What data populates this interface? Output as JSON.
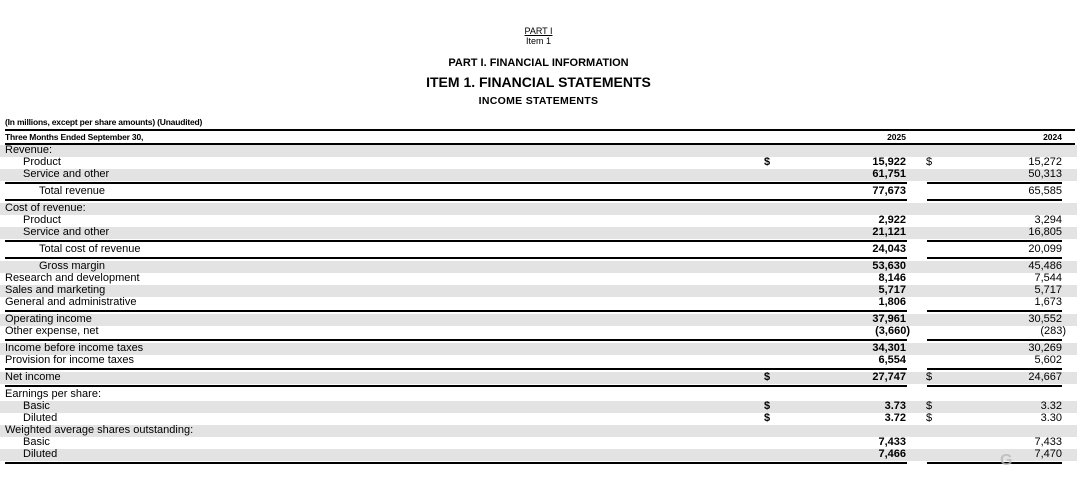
{
  "header": {
    "part_link": "PART I",
    "item_label": "Item 1",
    "title_part": "PART I. FINANCIAL INFORMATION",
    "title_item": "ITEM 1. FINANCIAL STATEMENTS",
    "title_statement": "INCOME STATEMENTS"
  },
  "table": {
    "note": "(In millions, except per share amounts) (Unaudited)",
    "period_header": "Three Months Ended September 30,",
    "years": [
      "2025",
      "2024"
    ],
    "rows": [
      {
        "label": "Revenue:",
        "indent": 0,
        "shade": true,
        "v2025": "",
        "v2024": "",
        "dollar": false
      },
      {
        "label": "Product",
        "indent": 1,
        "shade": false,
        "v2025": "15,922",
        "v2024": "15,272",
        "dollar": true
      },
      {
        "label": "Service and other",
        "indent": 1,
        "shade": true,
        "v2025": "61,751",
        "v2024": "50,313",
        "dollar": false,
        "line_after": true
      },
      {
        "label": "Total revenue",
        "indent": 2,
        "shade": false,
        "v2025": "77,673",
        "v2024": "65,585",
        "dollar": false,
        "line_after": true
      },
      {
        "label": "Cost of revenue:",
        "indent": 0,
        "shade": true,
        "v2025": "",
        "v2024": "",
        "dollar": false
      },
      {
        "label": "Product",
        "indent": 1,
        "shade": false,
        "v2025": "2,922",
        "v2024": "3,294",
        "dollar": false
      },
      {
        "label": "Service and other",
        "indent": 1,
        "shade": true,
        "v2025": "21,121",
        "v2024": "16,805",
        "dollar": false,
        "line_after": true
      },
      {
        "label": "Total cost of revenue",
        "indent": 2,
        "shade": false,
        "v2025": "24,043",
        "v2024": "20,099",
        "dollar": false,
        "line_after": true
      },
      {
        "label": "Gross margin",
        "indent": 2,
        "shade": true,
        "v2025": "53,630",
        "v2024": "45,486",
        "dollar": false
      },
      {
        "label": "Research and development",
        "indent": 0,
        "shade": false,
        "v2025": "8,146",
        "v2024": "7,544",
        "dollar": false
      },
      {
        "label": "Sales and marketing",
        "indent": 0,
        "shade": true,
        "v2025": "5,717",
        "v2024": "5,717",
        "dollar": false
      },
      {
        "label": "General and administrative",
        "indent": 0,
        "shade": false,
        "v2025": "1,806",
        "v2024": "1,673",
        "dollar": false,
        "line_after": true
      },
      {
        "label": "Operating income",
        "indent": 0,
        "shade": true,
        "v2025": "37,961",
        "v2024": "30,552",
        "dollar": false
      },
      {
        "label": "Other expense, net",
        "indent": 0,
        "shade": false,
        "v2025": "(3,660)",
        "v2024": "(283)",
        "dollar": false,
        "line_after": true
      },
      {
        "label": "Income before income taxes",
        "indent": 0,
        "shade": true,
        "v2025": "34,301",
        "v2024": "30,269",
        "dollar": false
      },
      {
        "label": "Provision for income taxes",
        "indent": 0,
        "shade": false,
        "v2025": "6,554",
        "v2024": "5,602",
        "dollar": false,
        "line_after": true
      },
      {
        "label": "Net income",
        "indent": 0,
        "shade": true,
        "v2025": "27,747",
        "v2024": "24,667",
        "dollar": true,
        "line_after": true
      },
      {
        "label": "Earnings per share:",
        "indent": 0,
        "shade": false,
        "v2025": "",
        "v2024": "",
        "dollar": false
      },
      {
        "label": "Basic",
        "indent": 1,
        "shade": true,
        "v2025": "3.73",
        "v2024": "3.32",
        "dollar": true
      },
      {
        "label": "Diluted",
        "indent": 1,
        "shade": false,
        "v2025": "3.72",
        "v2024": "3.30",
        "dollar": true
      },
      {
        "label": "Weighted average shares outstanding:",
        "indent": 0,
        "shade": true,
        "v2025": "",
        "v2024": "",
        "dollar": false
      },
      {
        "label": "Basic",
        "indent": 1,
        "shade": false,
        "v2025": "7,433",
        "v2024": "7,433",
        "dollar": false
      },
      {
        "label": "Diluted",
        "indent": 1,
        "shade": true,
        "v2025": "7,466",
        "v2024": "7,470",
        "dollar": false,
        "line_after": true
      }
    ]
  },
  "watermark": "格隆汇"
}
